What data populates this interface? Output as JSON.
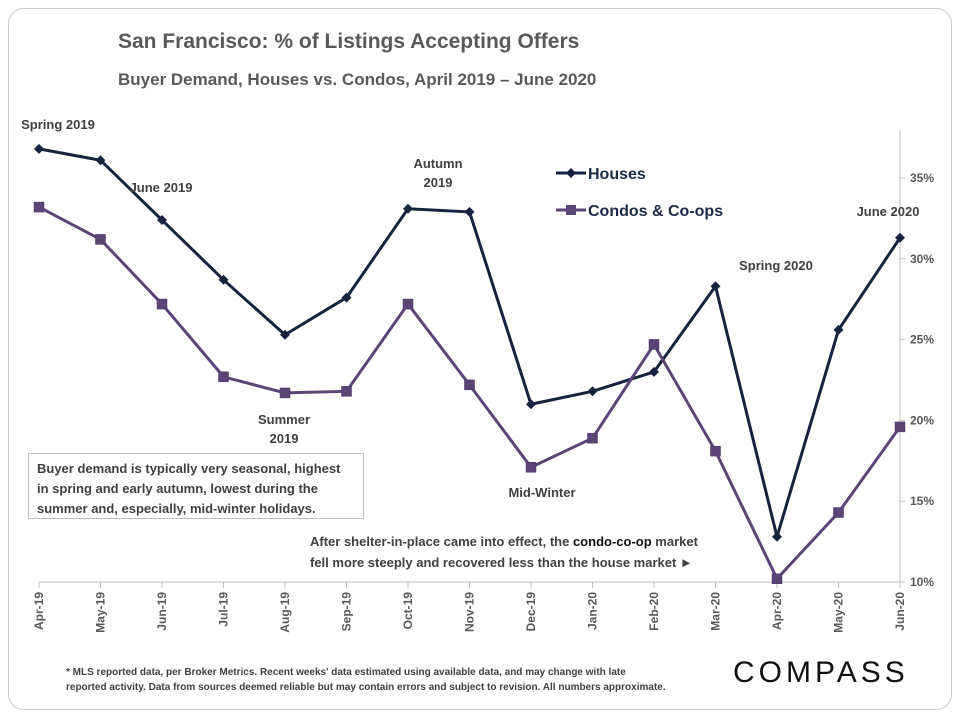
{
  "header": {
    "title": "San Francisco: % of Listings Accepting Offers",
    "subtitle": "Buyer Demand, Houses vs. Condos, April 2019 – June 2020"
  },
  "chart_data": {
    "type": "line",
    "title": "San Francisco: % of Listings Accepting Offers",
    "subtitle": "Buyer Demand, Houses vs. Condos, April 2019 – June 2020",
    "categories": [
      "Apr-19",
      "May-19",
      "Jun-19",
      "Jul-19",
      "Aug-19",
      "Sep-19",
      "Oct-19",
      "Nov-19",
      "Dec-19",
      "Jan-20",
      "Feb-20",
      "Mar-20",
      "Apr-20",
      "May-20",
      "Jun-20"
    ],
    "series": [
      {
        "name": "Houses",
        "color": "#16233f",
        "marker": "diamond",
        "values": [
          36.8,
          36.1,
          32.4,
          28.7,
          25.3,
          27.6,
          33.1,
          32.9,
          21.0,
          21.8,
          23.0,
          28.3,
          12.8,
          25.6,
          31.3
        ]
      },
      {
        "name": "Condos & Co-ops",
        "color": "#5b4476",
        "marker": "square",
        "values": [
          33.2,
          31.2,
          27.2,
          22.7,
          21.7,
          21.8,
          27.2,
          22.2,
          17.1,
          18.9,
          24.7,
          18.1,
          10.2,
          14.3,
          19.6
        ]
      }
    ],
    "ylim": [
      10,
      37
    ],
    "y_ticks": [
      10,
      15,
      20,
      25,
      30,
      35
    ],
    "y_tick_labels": [
      "10%",
      "15%",
      "20%",
      "25%",
      "30%",
      "35%"
    ],
    "y_axis_side": "right",
    "grid": false,
    "legend_placement": "top-center",
    "annotations": [
      {
        "text": "Spring 2019",
        "near": "Apr-19"
      },
      {
        "text": "June 2019",
        "near": "Jun-19"
      },
      {
        "text": "Autumn",
        "near": "Oct-19"
      },
      {
        "text": "2019",
        "near": "Oct-19"
      },
      {
        "text": "Summer",
        "near": "Aug-19"
      },
      {
        "text": "2019",
        "near": "Aug-19"
      },
      {
        "text": "Mid-Winter",
        "near": "Dec-19"
      },
      {
        "text": "Spring 2020",
        "near": "Mar-20"
      },
      {
        "text": "June 2020",
        "near": "Jun-20"
      }
    ]
  },
  "notes": {
    "box_line1": "Buyer demand is typically very seasonal, highest",
    "box_line2": "in spring and early autumn, lowest during the",
    "box_line3": "summer and, especially, mid-winter holidays.",
    "shelter_pre": "After shelter-in-place came into effect, the ",
    "shelter_bold": "condo-co-op",
    "shelter_post": " market",
    "shelter_line2": "fell more steeply and recovered less than the house market ►"
  },
  "footer": {
    "line1": "* MLS reported data, per Broker Metrics. Recent weeks' data estimated using available data, and may change with late",
    "line2": "reported activity. Data from sources deemed reliable but may contain errors and subject to revision. All numbers approximate."
  },
  "logo": {
    "text": "COMPASS"
  }
}
